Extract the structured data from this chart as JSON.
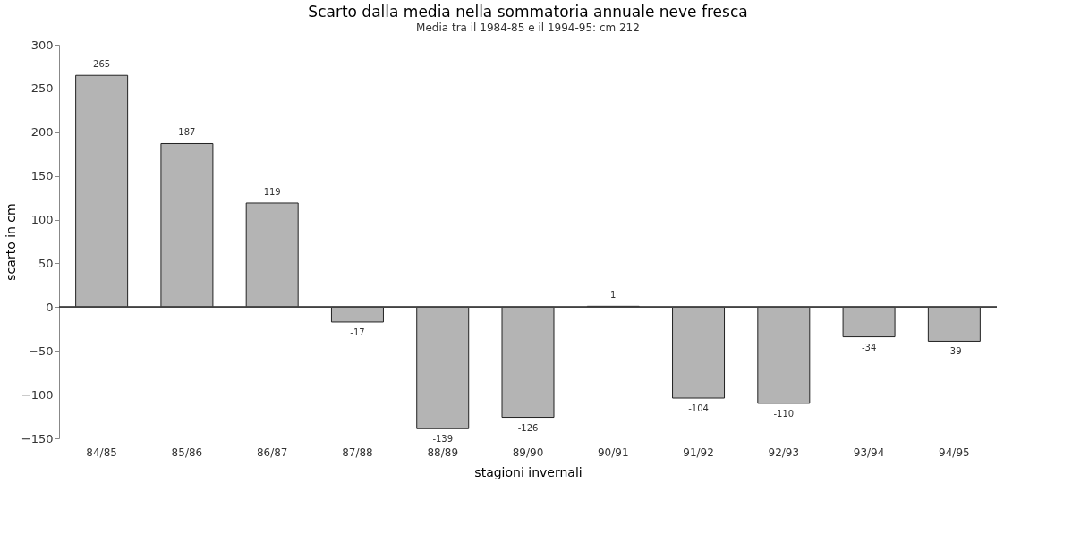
{
  "chart_data": {
    "type": "bar",
    "title": "Scarto dalla media nella sommatoria annuale neve fresca",
    "subtitle": "Media tra il 1984-85 e il 1994-95: cm 212",
    "xlabel": "stagioni invernali",
    "ylabel": "scarto in cm",
    "categories": [
      "84/85",
      "85/86",
      "86/87",
      "87/88",
      "88/89",
      "89/90",
      "90/91",
      "91/92",
      "92/93",
      "93/94",
      "94/95"
    ],
    "values": [
      265,
      187,
      119,
      -17,
      -139,
      -126,
      1,
      -104,
      -110,
      -34,
      -39
    ],
    "color": "#b4b4b4",
    "ylim": [
      -150,
      300
    ],
    "yticks": [
      -150,
      -100,
      -50,
      0,
      50,
      100,
      150,
      200,
      250,
      300
    ],
    "data_labels": true
  }
}
